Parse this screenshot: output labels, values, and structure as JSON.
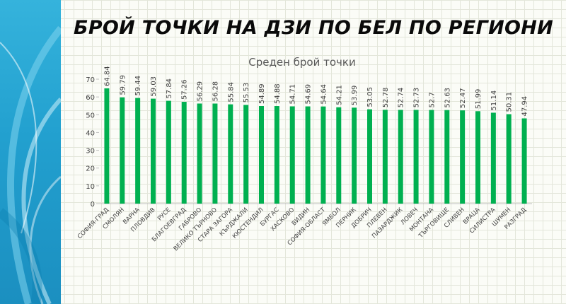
{
  "slide": {
    "title": "БРОЙ ТОЧКИ НА ДЗИ ПО БЕЛ ПО РЕГИОНИ"
  },
  "colors": {
    "bar": "#00b050",
    "side_band": "#22a0cf"
  },
  "chart_data": {
    "type": "bar",
    "title": "Среден брой точки",
    "xlabel": "",
    "ylabel": "",
    "ylim": [
      0,
      70
    ],
    "yticks": [
      0,
      10,
      20,
      30,
      40,
      50,
      60,
      70
    ],
    "grid": false,
    "legend": "none",
    "categories": [
      "СОФИЯ-ГРАД",
      "СМОЛЯН",
      "ВАРНА",
      "ПЛОВДИВ",
      "РУСЕ",
      "БЛАГОЕВГРАД",
      "ГАБРОВО",
      "ВЕЛИКО ТЪРНОВО",
      "СТАРА ЗАГОРА",
      "КЪРДЖАЛИ",
      "КЮСТЕНДИЛ",
      "БУРГАС",
      "ХАСКОВО",
      "ВИДИН",
      "СОФИЯ-ОБЛАСТ",
      "ЯМБОЛ",
      "ПЕРНИК",
      "ДОБРИЧ",
      "ПЛЕВЕН",
      "ПАЗАРДЖИК",
      "ЛОВЕЧ",
      "МОНТАНА",
      "ТЪРГОВИЩЕ",
      "СЛИВЕН",
      "ВРАЦА",
      "СИЛИСТРА",
      "ШУМЕН",
      "РАЗГРАД"
    ],
    "values": [
      64.84,
      59.79,
      59.44,
      59.03,
      57.84,
      57.26,
      56.29,
      56.28,
      55.84,
      55.53,
      54.89,
      54.88,
      54.71,
      54.69,
      54.64,
      54.21,
      53.99,
      53.05,
      52.78,
      52.74,
      52.73,
      52.7,
      52.63,
      52.47,
      51.99,
      51.14,
      50.31,
      47.94
    ],
    "data_labels": [
      "64.84",
      "59.79",
      "59.44",
      "59.03",
      "57.84",
      "57.26",
      "56.29",
      "56.28",
      "55.84",
      "55.53",
      "54.89",
      "54.88",
      "54.71",
      "54.69",
      "54.64",
      "54.21",
      "53.99",
      "53.05",
      "52.78",
      "52.74",
      "52.73",
      "52.7",
      "52.63",
      "52.47",
      "51.99",
      "51.14",
      "50.31",
      "47.94"
    ]
  }
}
